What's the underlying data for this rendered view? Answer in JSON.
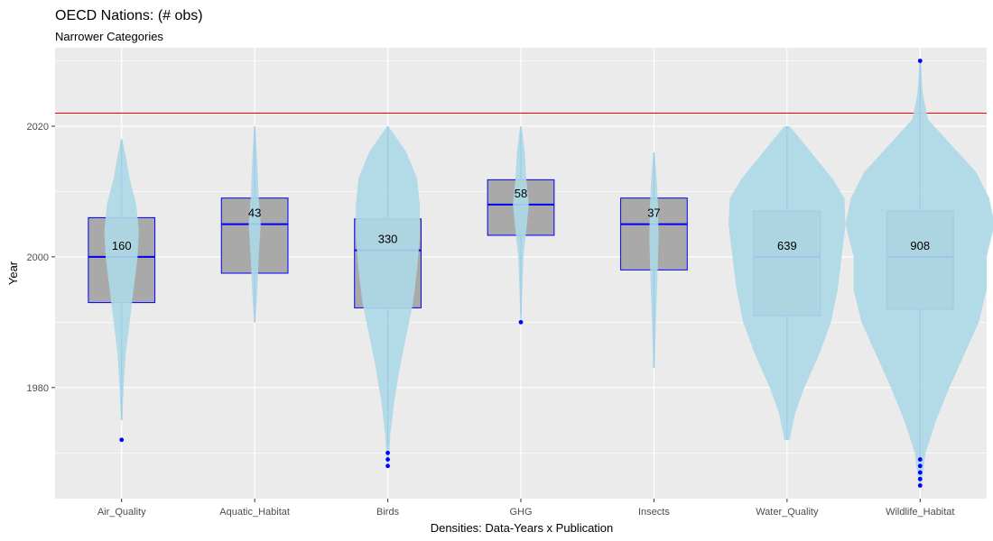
{
  "chart_data": {
    "type": "violin",
    "title": "OECD Nations: (# obs)",
    "subtitle": "Narrower Categories",
    "xlabel": "Densities: Data-Years x Publication",
    "ylabel": "Year",
    "ylim": [
      1963,
      2032
    ],
    "yticks": [
      1980,
      2000,
      2020
    ],
    "reference_line": {
      "y": 2022,
      "color": "#ff0000"
    },
    "grid": true,
    "colors": {
      "panel": "#ebebeb",
      "violin": "#add8e6",
      "box_fill": "#a9a9a9",
      "box_outline": "#0000ff",
      "outlier": "#0000ff"
    },
    "categories": [
      "Air_Quality",
      "Aquatic_Habitat",
      "Birds",
      "GHG",
      "Insects",
      "Water_Quality",
      "Wildlife_Habitat"
    ],
    "series": [
      {
        "category": "Air_Quality",
        "count": 160,
        "box": {
          "q1": 1993,
          "median": 2000,
          "q3": 2006,
          "whisker_low": 1975,
          "whisker_high": 2018
        },
        "outliers": [
          1972
        ],
        "violin_max_half_width": 0.13,
        "violin": [
          [
            1975,
            0.005
          ],
          [
            1980,
            0.015
          ],
          [
            1985,
            0.03
          ],
          [
            1990,
            0.06
          ],
          [
            1995,
            0.09
          ],
          [
            2000,
            0.12
          ],
          [
            2004,
            0.13
          ],
          [
            2008,
            0.11
          ],
          [
            2012,
            0.06
          ],
          [
            2015,
            0.035
          ],
          [
            2018,
            0.005
          ]
        ]
      },
      {
        "category": "Aquatic_Habitat",
        "count": 43,
        "box": {
          "q1": 1997.5,
          "median": 2005,
          "q3": 2009,
          "whisker_low": 1990,
          "whisker_high": 2020
        },
        "outliers": [],
        "violin_max_half_width": 0.045,
        "violin": [
          [
            1990,
            0.005
          ],
          [
            1995,
            0.02
          ],
          [
            2000,
            0.03
          ],
          [
            2005,
            0.045
          ],
          [
            2009,
            0.03
          ],
          [
            2014,
            0.02
          ],
          [
            2020,
            0.005
          ]
        ]
      },
      {
        "category": "Birds",
        "count": 330,
        "box": {
          "q1": 1992.2,
          "median": 2001,
          "q3": 2005.8,
          "whisker_low": 1971,
          "whisker_high": 2020
        },
        "outliers": [
          1968,
          1969,
          1970
        ],
        "violin_max_half_width": 0.24,
        "violin": [
          [
            1968,
            0.005
          ],
          [
            1973,
            0.02
          ],
          [
            1978,
            0.05
          ],
          [
            1983,
            0.09
          ],
          [
            1988,
            0.14
          ],
          [
            1993,
            0.19
          ],
          [
            1998,
            0.22
          ],
          [
            2003,
            0.24
          ],
          [
            2008,
            0.24
          ],
          [
            2012,
            0.22
          ],
          [
            2016,
            0.14
          ],
          [
            2020,
            0.005
          ]
        ]
      },
      {
        "category": "GHG",
        "count": 58,
        "box": {
          "q1": 2003.3,
          "median": 2008,
          "q3": 2011.8,
          "whisker_low": 1991,
          "whisker_high": 2020
        },
        "outliers": [
          1990
        ],
        "violin_max_half_width": 0.06,
        "violin": [
          [
            1990,
            0.005
          ],
          [
            1995,
            0.01
          ],
          [
            2000,
            0.02
          ],
          [
            2004,
            0.04
          ],
          [
            2008,
            0.06
          ],
          [
            2012,
            0.04
          ],
          [
            2016,
            0.03
          ],
          [
            2020,
            0.005
          ]
        ]
      },
      {
        "category": "Insects",
        "count": 37,
        "box": {
          "q1": 1998,
          "median": 2005,
          "q3": 2009,
          "whisker_low": 1983,
          "whisker_high": 2016
        },
        "outliers": [],
        "violin_max_half_width": 0.035,
        "violin": [
          [
            1983,
            0.005
          ],
          [
            1990,
            0.015
          ],
          [
            1996,
            0.025
          ],
          [
            2003,
            0.035
          ],
          [
            2008,
            0.03
          ],
          [
            2012,
            0.02
          ],
          [
            2016,
            0.005
          ]
        ]
      },
      {
        "category": "Water_Quality",
        "count": 639,
        "box": {
          "q1": 1991,
          "median": 2000,
          "q3": 2007,
          "whisker_low": 1972,
          "whisker_high": 2020
        },
        "outliers": [],
        "violin_max_half_width": 0.45,
        "violin": [
          [
            1972,
            0.02
          ],
          [
            1976,
            0.06
          ],
          [
            1980,
            0.13
          ],
          [
            1985,
            0.24
          ],
          [
            1990,
            0.33
          ],
          [
            1995,
            0.38
          ],
          [
            2000,
            0.41
          ],
          [
            2005,
            0.44
          ],
          [
            2009,
            0.43
          ],
          [
            2012,
            0.34
          ],
          [
            2015,
            0.22
          ],
          [
            2018,
            0.1
          ],
          [
            2020,
            0.02
          ]
        ]
      },
      {
        "category": "Wildlife_Habitat",
        "count": 908,
        "box": {
          "q1": 1992,
          "median": 2000,
          "q3": 2007,
          "whisker_low": 1969,
          "whisker_high": 2030
        },
        "outliers": [
          1965,
          1966,
          1967,
          1968,
          1969,
          2030
        ],
        "violin_max_half_width": 0.56,
        "violin": [
          [
            1965,
            0.01
          ],
          [
            1970,
            0.04
          ],
          [
            1975,
            0.12
          ],
          [
            1980,
            0.22
          ],
          [
            1985,
            0.33
          ],
          [
            1990,
            0.44
          ],
          [
            1995,
            0.5
          ],
          [
            2000,
            0.5
          ],
          [
            2005,
            0.56
          ],
          [
            2009,
            0.52
          ],
          [
            2013,
            0.42
          ],
          [
            2017,
            0.24
          ],
          [
            2021,
            0.06
          ],
          [
            2025,
            0.02
          ],
          [
            2028,
            0.01
          ],
          [
            2030,
            0.005
          ]
        ]
      }
    ]
  }
}
